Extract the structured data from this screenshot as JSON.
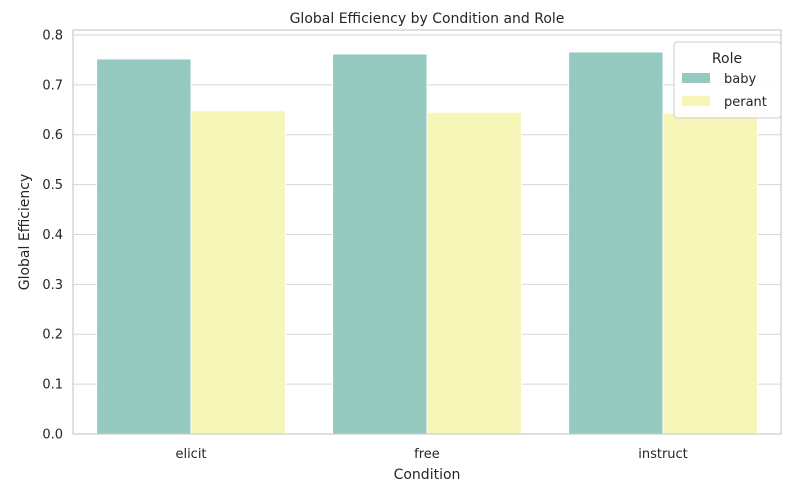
{
  "chart_data": {
    "type": "bar",
    "title": "Global Efficiency by Condition and Role",
    "xlabel": "Condition",
    "ylabel": "Global Efficiency",
    "categories": [
      "elicit",
      "free",
      "instruct"
    ],
    "series": [
      {
        "name": "baby",
        "values": [
          0.752,
          0.762,
          0.766
        ],
        "color": "#96cac0"
      },
      {
        "name": "perant",
        "values": [
          0.648,
          0.645,
          0.643
        ],
        "color": "#f6f6b9"
      }
    ],
    "ylim": [
      0,
      0.81
    ],
    "yticks": [
      0.0,
      0.1,
      0.2,
      0.3,
      0.4,
      0.5,
      0.6,
      0.7,
      0.8
    ],
    "ytick_labels": [
      "0.0",
      "0.1",
      "0.2",
      "0.3",
      "0.4",
      "0.5",
      "0.6",
      "0.7",
      "0.8"
    ],
    "grid": "y",
    "legend": {
      "title": "Role",
      "position": "top-right"
    },
    "colors": {
      "grid": "#d6d6d6",
      "frame": "#cccccc",
      "text": "#262626"
    }
  }
}
